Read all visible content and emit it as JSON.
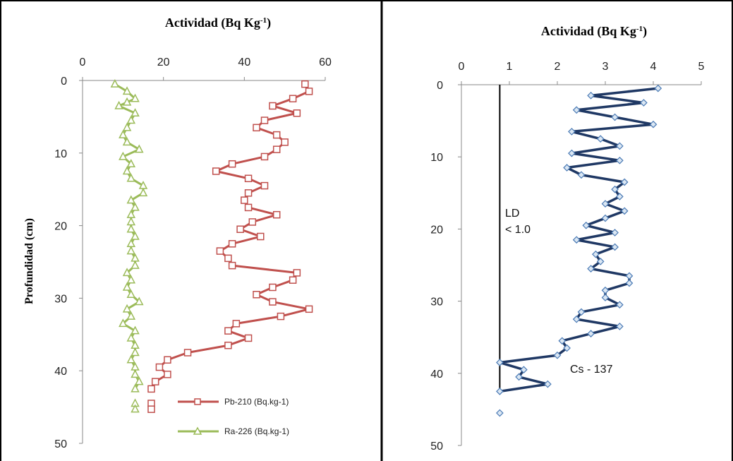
{
  "chart_data": [
    {
      "type": "line",
      "title": "Actividad (Bq Kg",
      "title_sup": "-1",
      "title_close": ")",
      "ylabel": "Profundidad (cm)",
      "xlim": [
        0,
        60
      ],
      "ylim": [
        0,
        50
      ],
      "x_axis_position": "top",
      "y_inverted": true,
      "grid": false,
      "legend_position": "bottom-right",
      "xticks": [
        "0",
        "20",
        "40",
        "60"
      ],
      "yticks": [
        "0",
        "10",
        "20",
        "30",
        "40",
        "50"
      ],
      "colors": {
        "Pb": "#c0504d",
        "Ra": "#9bbb59"
      },
      "series": [
        {
          "name": "Pb-210 (Bq.kg-1)",
          "marker": "square",
          "points": [
            [
              55,
              0.5
            ],
            [
              56,
              1.5
            ],
            [
              52,
              2.5
            ],
            [
              47,
              3.5
            ],
            [
              53,
              4.5
            ],
            [
              45,
              5.5
            ],
            [
              43,
              6.5
            ],
            [
              48,
              7.5
            ],
            [
              50,
              8.5
            ],
            [
              48,
              9.5
            ],
            [
              45,
              10.5
            ],
            [
              37,
              11.5
            ],
            [
              33,
              12.5
            ],
            [
              41,
              13.5
            ],
            [
              45,
              14.5
            ],
            [
              41,
              15.5
            ],
            [
              40,
              16.5
            ],
            [
              41,
              17.5
            ],
            [
              48,
              18.5
            ],
            [
              42,
              19.5
            ],
            [
              39,
              20.5
            ],
            [
              44,
              21.5
            ],
            [
              37,
              22.5
            ],
            [
              34,
              23.5
            ],
            [
              36,
              24.5
            ],
            [
              37,
              25.5
            ],
            [
              53,
              26.5
            ],
            [
              52,
              27.5
            ],
            [
              47,
              28.5
            ],
            [
              43,
              29.5
            ],
            [
              47,
              30.5
            ],
            [
              56,
              31.5
            ],
            [
              49,
              32.5
            ],
            [
              38,
              33.5
            ],
            [
              36,
              34.5
            ],
            [
              41,
              35.5
            ],
            [
              36,
              36.5
            ],
            [
              26,
              37.5
            ],
            [
              21,
              38.5
            ],
            [
              19,
              39.5
            ],
            [
              21,
              40.5
            ],
            [
              18,
              41.5
            ],
            [
              17,
              42.5
            ]
          ],
          "extra_markers": [
            [
              17,
              44.5
            ],
            [
              17,
              45.3
            ]
          ]
        },
        {
          "name": "Ra-226 (Bq.kg-1)",
          "marker": "triangle",
          "points": [
            [
              8,
              0.5
            ],
            [
              11,
              1.5
            ],
            [
              13,
              2.5
            ],
            [
              11,
              3
            ],
            [
              9,
              3.5
            ],
            [
              13,
              4.5
            ],
            [
              12,
              5.5
            ],
            [
              11,
              6.5
            ],
            [
              10,
              7.5
            ],
            [
              11,
              8.5
            ],
            [
              14,
              9.5
            ],
            [
              10,
              10.5
            ],
            [
              12,
              11.5
            ],
            [
              11,
              12.5
            ],
            [
              12,
              13.5
            ],
            [
              15,
              14.5
            ],
            [
              15,
              15.5
            ],
            [
              12,
              16.5
            ],
            [
              13,
              17.5
            ],
            [
              12,
              18.5
            ],
            [
              12,
              19.5
            ],
            [
              12,
              20.5
            ],
            [
              13,
              21.5
            ],
            [
              12,
              22.5
            ],
            [
              12,
              23.5
            ],
            [
              13,
              24.5
            ],
            [
              13,
              25.5
            ],
            [
              11,
              26.5
            ],
            [
              12,
              27.5
            ],
            [
              11,
              28.5
            ],
            [
              12,
              29.5
            ],
            [
              14,
              30.5
            ],
            [
              11,
              31.5
            ],
            [
              12,
              32.5
            ],
            [
              10,
              33.5
            ],
            [
              13,
              34.5
            ],
            [
              12,
              35.5
            ],
            [
              13,
              36.5
            ],
            [
              13,
              37.5
            ],
            [
              12,
              38.5
            ],
            [
              13,
              39.5
            ],
            [
              13,
              40.5
            ],
            [
              14,
              41.5
            ],
            [
              13,
              42.5
            ]
          ],
          "extra_markers": [
            [
              13,
              44.5
            ],
            [
              13,
              45.3
            ]
          ]
        }
      ]
    },
    {
      "type": "line",
      "title": "Actividad (Bq Kg",
      "title_sup": "-1",
      "title_close": ")",
      "xlim": [
        0,
        5
      ],
      "ylim": [
        0,
        50
      ],
      "x_axis_position": "top",
      "y_inverted": true,
      "grid": false,
      "xticks": [
        "0",
        "1",
        "2",
        "3",
        "4",
        "5"
      ],
      "yticks": [
        "0",
        "10",
        "20",
        "30",
        "40",
        "50"
      ],
      "annotations": [
        "LD",
        "< 1.0",
        "Cs - 137"
      ],
      "reference_line": {
        "x": 0.8,
        "y_from": 0,
        "y_to": 42.5
      },
      "colors": {
        "Cs": "#1f3864",
        "marker_fill": "#dbe7f3",
        "marker_stroke": "#4a7ab5"
      },
      "series": [
        {
          "marker": "diamond",
          "points": [
            [
              4.1,
              0.5
            ],
            [
              2.7,
              1.5
            ],
            [
              3.8,
              2.5
            ],
            [
              2.4,
              3.5
            ],
            [
              3.2,
              4.5
            ],
            [
              4.0,
              5.5
            ],
            [
              2.3,
              6.5
            ],
            [
              2.9,
              7.5
            ],
            [
              3.3,
              8.5
            ],
            [
              2.3,
              9.5
            ],
            [
              3.3,
              10.5
            ],
            [
              2.2,
              11.5
            ],
            [
              2.5,
              12.5
            ],
            [
              3.4,
              13.5
            ],
            [
              3.2,
              14.5
            ],
            [
              3.3,
              15.5
            ],
            [
              3.0,
              16.5
            ],
            [
              3.4,
              17.5
            ],
            [
              3.0,
              18.5
            ],
            [
              2.6,
              19.5
            ],
            [
              3.2,
              20.5
            ],
            [
              2.4,
              21.5
            ],
            [
              3.2,
              22.5
            ],
            [
              2.8,
              23.5
            ],
            [
              2.9,
              24.5
            ],
            [
              2.7,
              25.5
            ],
            [
              3.5,
              26.5
            ],
            [
              3.5,
              27.5
            ],
            [
              3.0,
              28.5
            ],
            [
              3.0,
              29.5
            ],
            [
              3.3,
              30.5
            ],
            [
              2.5,
              31.5
            ],
            [
              2.4,
              32.5
            ],
            [
              3.3,
              33.5
            ],
            [
              2.7,
              34.5
            ],
            [
              2.1,
              35.5
            ],
            [
              2.2,
              36.5
            ],
            [
              2.0,
              37.5
            ],
            [
              0.8,
              38.5
            ],
            [
              1.3,
              39.5
            ],
            [
              1.2,
              40.5
            ],
            [
              1.8,
              41.5
            ],
            [
              0.8,
              42.5
            ]
          ],
          "extra_markers": [
            [
              0.8,
              45.5
            ]
          ]
        }
      ]
    }
  ]
}
